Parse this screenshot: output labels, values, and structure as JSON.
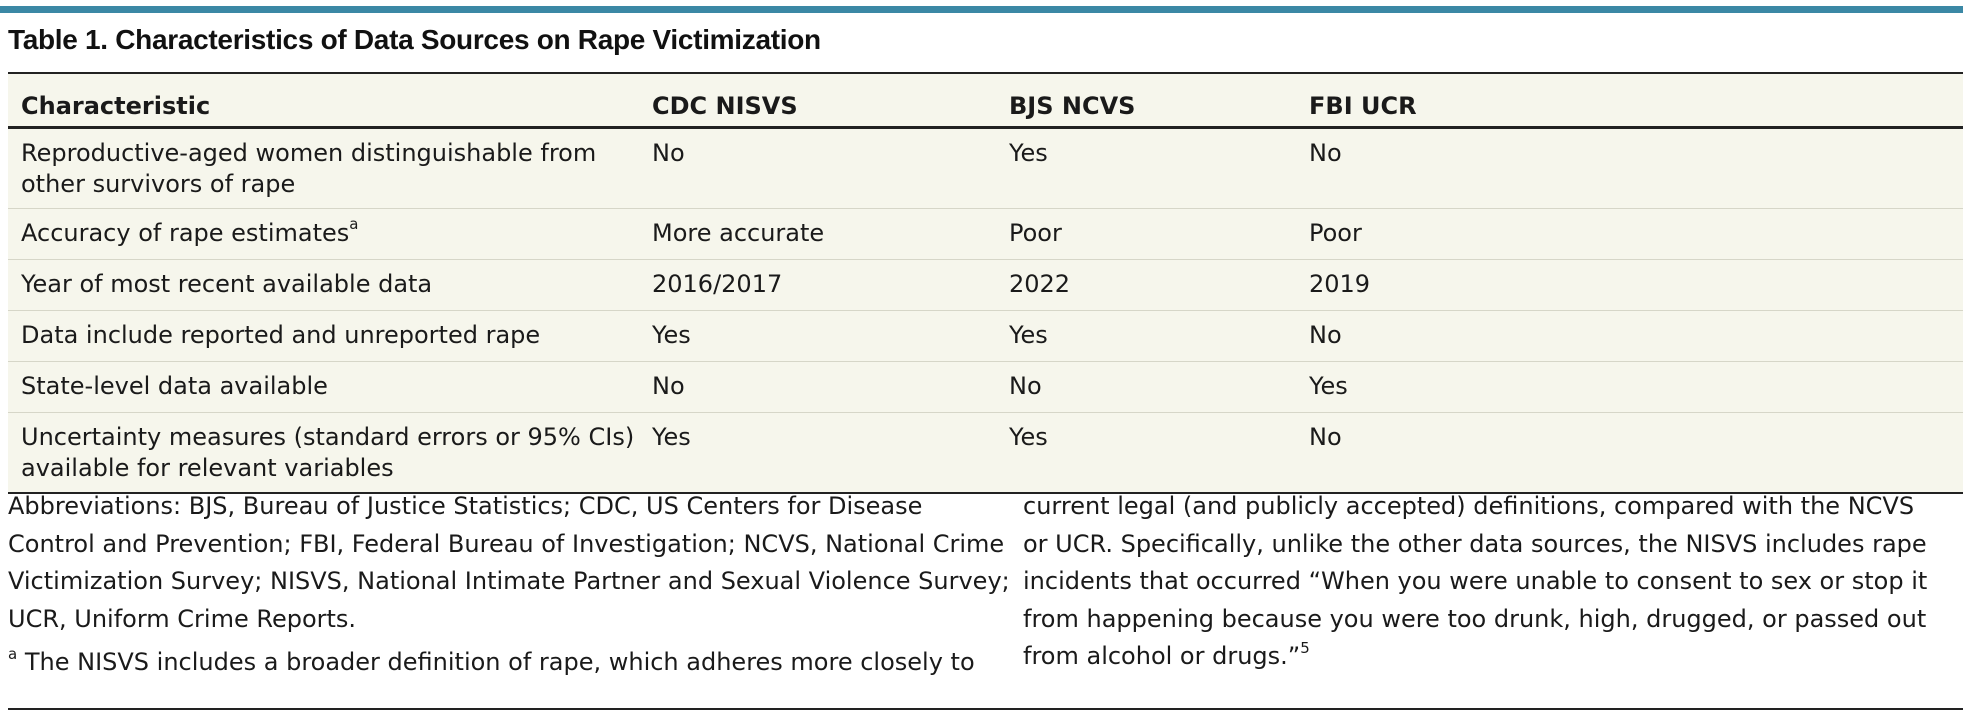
{
  "table": {
    "title": "Table 1. Characteristics of Data Sources on Rape Victimization",
    "columns": [
      "Characteristic",
      "CDC NISVS",
      "BJS NCVS",
      "FBI UCR"
    ],
    "rows": [
      {
        "characteristic": "Reproductive-aged women distinguishable from other survivors of rape",
        "footnote": "",
        "nisvs": "No",
        "ncvs": "Yes",
        "ucr": "No"
      },
      {
        "characteristic": "Accuracy of rape estimates",
        "footnote": "a",
        "nisvs": "More accurate",
        "ncvs": "Poor",
        "ucr": "Poor"
      },
      {
        "characteristic": "Year of most recent available data",
        "footnote": "",
        "nisvs": "2016/2017",
        "ncvs": "2022",
        "ucr": "2019"
      },
      {
        "characteristic": "Data include reported and unreported rape",
        "footnote": "",
        "nisvs": "Yes",
        "ncvs": "Yes",
        "ucr": "No"
      },
      {
        "characteristic": "State-level data available",
        "footnote": "",
        "nisvs": "No",
        "ncvs": "No",
        "ucr": "Yes"
      },
      {
        "characteristic": "Uncertainty measures (standard errors or 95% CIs) available for relevant variables",
        "footnote": "",
        "nisvs": "Yes",
        "ncvs": "Yes",
        "ucr": "No"
      }
    ]
  },
  "notes": {
    "abbreviations": "Abbreviations: BJS, Bureau of Justice Statistics; CDC, US Centers for Disease Control and Prevention; FBI, Federal Bureau of Investigation; NCVS, National Crime Victimization Survey; NISVS, National Intimate Partner and Sexual Violence Survey; UCR, Uniform Crime Reports.",
    "footnote_marker": "a",
    "footnote_text_left": "The NISVS includes a broader definition of rape, which adheres more closely to",
    "footnote_text_right": "current legal (and publicly accepted) definitions, compared with the NCVS or UCR. Specifically, unlike the other data sources, the NISVS includes rape incidents that occurred “When you were unable to consent to sex or stop it from happening because you were too drunk, high, drugged, or passed out from alcohol or drugs.”",
    "reference_marker": "5"
  },
  "colors": {
    "accent_bar": "#3b88a5",
    "table_background": "#f6f6ec",
    "row_divider": "#d6d6c8"
  }
}
